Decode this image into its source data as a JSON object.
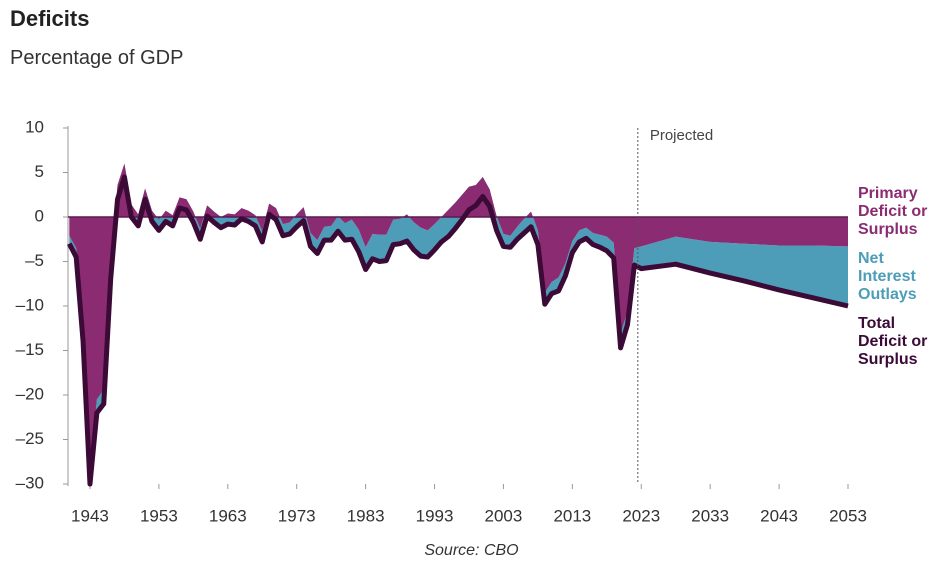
{
  "chart_data": {
    "type": "area-line",
    "title": "Deficits",
    "subtitle": "Percentage of GDP",
    "source": "Source: CBO",
    "annotation": {
      "x": 2022.5,
      "label": "Projected"
    },
    "x": [
      1940,
      1941,
      1942,
      1943,
      1944,
      1945,
      1946,
      1947,
      1948,
      1949,
      1950,
      1951,
      1952,
      1953,
      1954,
      1955,
      1956,
      1957,
      1958,
      1959,
      1960,
      1961,
      1962,
      1963,
      1964,
      1965,
      1966,
      1967,
      1968,
      1969,
      1970,
      1971,
      1972,
      1973,
      1974,
      1975,
      1976,
      1977,
      1978,
      1979,
      1980,
      1981,
      1982,
      1983,
      1984,
      1985,
      1986,
      1987,
      1988,
      1989,
      1990,
      1991,
      1992,
      1993,
      1994,
      1995,
      1996,
      1997,
      1998,
      1999,
      2000,
      2001,
      2002,
      2003,
      2004,
      2005,
      2006,
      2007,
      2008,
      2009,
      2010,
      2011,
      2012,
      2013,
      2014,
      2015,
      2016,
      2017,
      2018,
      2019,
      2020,
      2021,
      2022,
      2023,
      2028,
      2033,
      2038,
      2043,
      2048,
      2053
    ],
    "series": [
      {
        "name": "Primary Deficit or Surplus",
        "color": "#8b2c72",
        "kind": "area",
        "values": [
          -2.1,
          -3.5,
          -12.9,
          -28.7,
          -20.5,
          -19.4,
          -5.3,
          3.6,
          6.0,
          1.4,
          0.3,
          3.2,
          0.7,
          -0.3,
          0.7,
          0.2,
          2.2,
          2.0,
          0.6,
          -1.3,
          1.3,
          0.6,
          0,
          0.4,
          0.3,
          1.0,
          0.7,
          0.2,
          -1.6,
          1.5,
          1.0,
          -0.8,
          -0.6,
          0.3,
          1.1,
          -1.8,
          -2.6,
          -1.1,
          -1.0,
          0.1,
          -0.7,
          -0.3,
          -1.4,
          -3.4,
          -1.9,
          -2.0,
          -2.0,
          -0.3,
          -0.2,
          0.3,
          -0.6,
          -1.2,
          -1.5,
          -0.8,
          0,
          0.8,
          1.6,
          2.5,
          3.4,
          3.6,
          4.5,
          3.1,
          0.1,
          -1.9,
          -2.1,
          -1.1,
          -0.2,
          0.6,
          -1.5,
          -8.5,
          -7.3,
          -6.8,
          -5.2,
          -2.7,
          -1.5,
          -1.2,
          -1.8,
          -2.0,
          -2.2,
          -2.9,
          -13.1,
          -10.6,
          -3.5,
          -3.3,
          -2.2,
          -2.8,
          -3.0,
          -3.2,
          -3.2,
          -3.3
        ]
      },
      {
        "name": "Net Interest Outlays",
        "color": "#4d9db8",
        "kind": "stacked-area",
        "values": [
          -0.9,
          -1.0,
          -1.1,
          -1.3,
          -1.5,
          -1.6,
          -1.7,
          -1.6,
          -1.5,
          -1.4,
          -1.3,
          -1.2,
          -1.2,
          -1.2,
          -1.2,
          -1.2,
          -1.2,
          -1.2,
          -1.2,
          -1.2,
          -1.2,
          -1.2,
          -1.2,
          -1.2,
          -1.2,
          -1.2,
          -1.2,
          -1.2,
          -1.2,
          -1.2,
          -1.3,
          -1.3,
          -1.3,
          -1.4,
          -1.5,
          -1.5,
          -1.5,
          -1.5,
          -1.6,
          -1.7,
          -1.9,
          -2.2,
          -2.5,
          -2.5,
          -2.8,
          -3.0,
          -2.9,
          -2.8,
          -2.8,
          -3.0,
          -3.1,
          -3.2,
          -3.0,
          -2.9,
          -2.8,
          -3.0,
          -2.9,
          -2.8,
          -2.6,
          -2.3,
          -2.2,
          -1.9,
          -1.6,
          -1.4,
          -1.3,
          -1.4,
          -1.6,
          -1.7,
          -1.6,
          -1.3,
          -1.3,
          -1.5,
          -1.4,
          -1.3,
          -1.3,
          -1.2,
          -1.3,
          -1.4,
          -1.6,
          -1.7,
          -1.6,
          -1.5,
          -1.9,
          -2.5,
          -3.1,
          -3.5,
          -4.2,
          -5.0,
          -5.9,
          -6.7
        ]
      },
      {
        "name": "Total Deficit or Surplus",
        "color": "#3b0a36",
        "kind": "line",
        "values": [
          -3,
          -4.5,
          -14,
          -30,
          -22,
          -21,
          -7,
          2,
          4.5,
          0,
          -1,
          2,
          -0.5,
          -1.5,
          -0.5,
          -1,
          1,
          0.8,
          -0.6,
          -2.5,
          0.1,
          -0.6,
          -1.2,
          -0.8,
          -0.9,
          -0.2,
          -0.5,
          -1,
          -2.8,
          0.3,
          -0.3,
          -2.1,
          -1.9,
          -1.1,
          -0.4,
          -3.3,
          -4.1,
          -2.6,
          -2.6,
          -1.6,
          -2.6,
          -2.5,
          -3.9,
          -5.9,
          -4.7,
          -5,
          -4.9,
          -3.1,
          -3,
          -2.7,
          -3.7,
          -4.4,
          -4.5,
          -3.7,
          -2.8,
          -2.2,
          -1.3,
          -0.3,
          0.8,
          1.3,
          2.3,
          1.2,
          -1.5,
          -3.3,
          -3.4,
          -2.5,
          -1.8,
          -1.1,
          -3.1,
          -9.8,
          -8.6,
          -8.3,
          -6.6,
          -4,
          -2.8,
          -2.4,
          -3.1,
          -3.4,
          -3.8,
          -4.6,
          -14.7,
          -12.1,
          -5.4,
          -5.8,
          -5.3,
          -6.3,
          -7.2,
          -8.2,
          -9.1,
          -10.0
        ]
      }
    ],
    "xlim": [
      1940,
      2053
    ],
    "xticks": [
      1943,
      1953,
      1963,
      1973,
      1983,
      1993,
      2003,
      2013,
      2023,
      2033,
      2043,
      2053
    ],
    "ylim": [
      -30,
      10
    ],
    "yticks": [
      10,
      5,
      0,
      {
        "value": -5,
        "label": "–5"
      },
      {
        "value": -10,
        "label": "–10"
      },
      {
        "value": -15,
        "label": "–15"
      },
      {
        "value": -20,
        "label": "–20"
      },
      {
        "value": -25,
        "label": "–25"
      },
      {
        "value": -30,
        "label": "–30"
      }
    ],
    "legend": "right"
  }
}
